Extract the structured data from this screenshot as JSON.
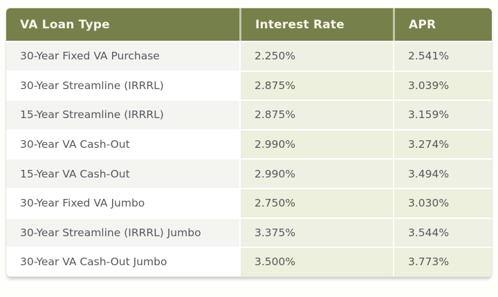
{
  "chart_data": {
    "type": "table",
    "columns": [
      "VA Loan Type",
      "Interest Rate",
      "APR"
    ],
    "rows": [
      [
        "30-Year Fixed VA Purchase",
        "2.250%",
        "2.541%"
      ],
      [
        "30-Year Streamline (IRRRL)",
        "2.875%",
        "3.039%"
      ],
      [
        "15-Year Streamline (IRRRL)",
        "2.875%",
        "3.159%"
      ],
      [
        "30-Year VA Cash-Out",
        "2.990%",
        "3.274%"
      ],
      [
        "15-Year VA Cash-Out",
        "2.990%",
        "3.494%"
      ],
      [
        "30-Year Fixed VA Jumbo",
        "2.750%",
        "3.030%"
      ],
      [
        "30-Year Streamline (IRRRL) Jumbo",
        "3.375%",
        "3.544%"
      ],
      [
        "30-Year VA Cash-Out Jumbo",
        "3.500%",
        "3.773%"
      ]
    ]
  },
  "table": {
    "header": {
      "loan_type": "VA Loan Type",
      "interest_rate": "Interest Rate",
      "apr": "APR"
    },
    "rows": [
      {
        "loan_type": "30-Year Fixed VA Purchase",
        "interest_rate": "2.250%",
        "apr": "2.541%"
      },
      {
        "loan_type": "30-Year Streamline (IRRRL)",
        "interest_rate": "2.875%",
        "apr": "3.039%"
      },
      {
        "loan_type": "15-Year Streamline (IRRRL)",
        "interest_rate": "2.875%",
        "apr": "3.159%"
      },
      {
        "loan_type": "30-Year VA Cash-Out",
        "interest_rate": "2.990%",
        "apr": "3.274%"
      },
      {
        "loan_type": "15-Year VA Cash-Out",
        "interest_rate": "2.990%",
        "apr": "3.494%"
      },
      {
        "loan_type": "30-Year Fixed VA Jumbo",
        "interest_rate": "2.750%",
        "apr": "3.030%"
      },
      {
        "loan_type": "30-Year Streamline (IRRRL) Jumbo",
        "interest_rate": "3.375%",
        "apr": "3.544%"
      },
      {
        "loan_type": "30-Year VA Cash-Out Jumbo",
        "interest_rate": "3.500%",
        "apr": "3.773%"
      }
    ]
  },
  "colors": {
    "header_bg": "#76804B",
    "header_text": "#F7F5EC",
    "row_alt_bg": "#F4F4F1",
    "row_bg": "#FFFFFF",
    "rate_cell_bg_alt": "#EEF0E4",
    "rate_cell_bg": "#ECF0DC",
    "body_text": "#55585C",
    "table_border": "#E6E6E2"
  }
}
